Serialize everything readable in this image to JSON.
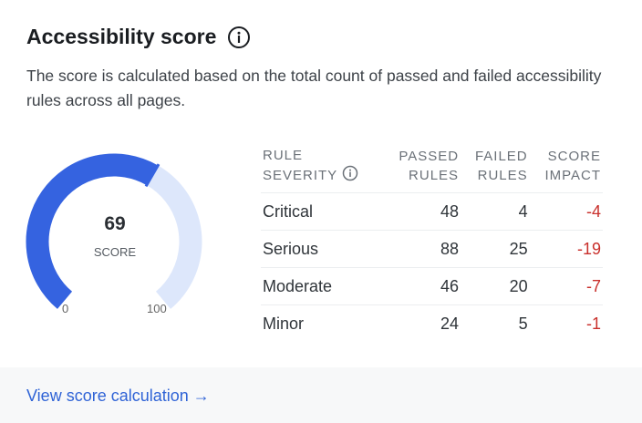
{
  "header": {
    "title": "Accessibility score",
    "description": "The score is calculated based on the total count of passed and failed accessibility rules across all pages."
  },
  "gauge": {
    "score": 69,
    "score_text": "69",
    "label": "SCORE",
    "min_label": "0",
    "max_label": "100",
    "min": 0,
    "max": 100,
    "fill_color": "#3563e0",
    "track_color": "#dde7fb"
  },
  "table": {
    "headers": [
      [
        "RULE",
        "SEVERITY"
      ],
      [
        "PASSED",
        "RULES"
      ],
      [
        "FAILED",
        "RULES"
      ],
      [
        "SCORE",
        "IMPACT"
      ]
    ],
    "rows": [
      {
        "severity": "Critical",
        "passed": "48",
        "failed": "4",
        "impact": "-4"
      },
      {
        "severity": "Serious",
        "passed": "88",
        "failed": "25",
        "impact": "-19"
      },
      {
        "severity": "Moderate",
        "passed": "46",
        "failed": "20",
        "impact": "-7"
      },
      {
        "severity": "Minor",
        "passed": "24",
        "failed": "5",
        "impact": "-1"
      }
    ]
  },
  "footer": {
    "link": "View score calculation →"
  }
}
